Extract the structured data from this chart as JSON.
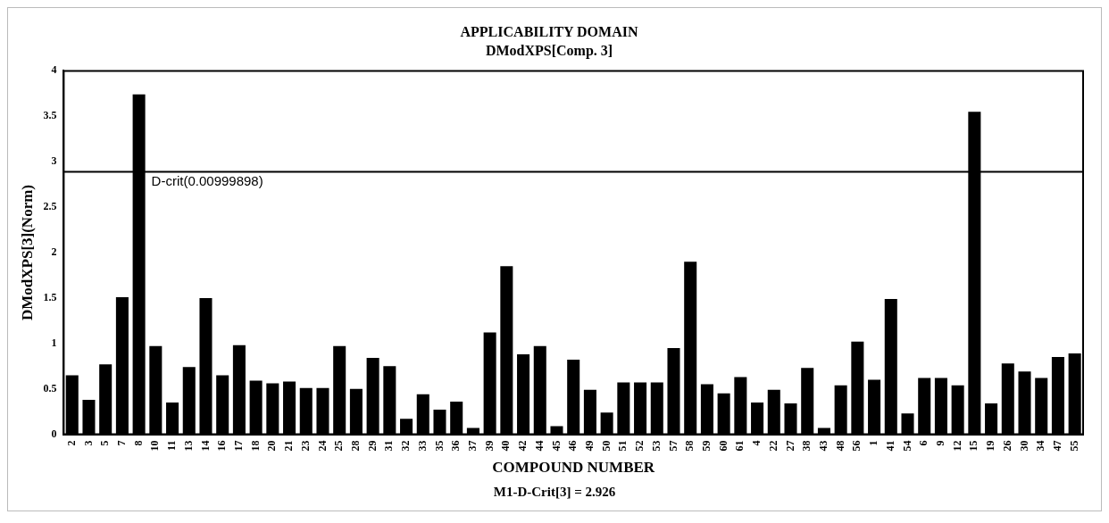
{
  "chart_data": {
    "type": "bar",
    "title": "APPLICABILITY DOMAIN",
    "subtitle": "DModXPS[Comp. 3]",
    "xlabel": "COMPOUND NUMBER",
    "ylabel": "DModXPS[3](Norm)",
    "categories": [
      "2",
      "3",
      "5",
      "7",
      "8",
      "10",
      "11",
      "13",
      "14",
      "16",
      "17",
      "18",
      "20",
      "21",
      "23",
      "24",
      "25",
      "28",
      "29",
      "31",
      "32",
      "33",
      "35",
      "36",
      "37",
      "39",
      "40",
      "42",
      "44",
      "45",
      "46",
      "49",
      "50",
      "51",
      "52",
      "53",
      "57",
      "58",
      "59",
      "60",
      "61",
      "4",
      "22",
      "27",
      "38",
      "43",
      "48",
      "56",
      "1",
      "41",
      "54",
      "6",
      "9",
      "12",
      "15",
      "19",
      "26",
      "30",
      "34",
      "47",
      "55"
    ],
    "values": [
      0.65,
      0.38,
      0.77,
      1.51,
      3.74,
      0.97,
      0.35,
      0.74,
      1.5,
      0.65,
      0.98,
      0.59,
      0.56,
      0.58,
      0.51,
      0.51,
      0.97,
      0.5,
      0.84,
      0.75,
      0.17,
      0.44,
      0.27,
      0.36,
      0.07,
      1.12,
      1.85,
      0.88,
      0.97,
      0.09,
      0.82,
      0.49,
      0.24,
      0.57,
      0.57,
      0.57,
      0.95,
      1.9,
      0.55,
      0.45,
      0.63,
      0.35,
      0.49,
      0.34,
      0.73,
      0.07,
      0.54,
      1.02,
      0.6,
      1.49,
      0.23,
      0.62,
      0.62,
      0.54,
      3.55,
      0.34,
      0.78,
      0.69,
      0.62,
      0.85,
      0.89
    ],
    "color": "#000000",
    "ylim": [
      0,
      4
    ],
    "yticks": [
      0,
      0.5,
      1,
      1.5,
      2,
      2.5,
      3,
      3.5,
      4
    ],
    "ref_lines": [
      {
        "axis": "y",
        "value": 2.89,
        "label": "D-crit(0.00999898)",
        "color": "#000000"
      }
    ],
    "annotations": [
      "M1-D-Crit[3] = 2.926"
    ],
    "grid": false,
    "legend": false
  }
}
